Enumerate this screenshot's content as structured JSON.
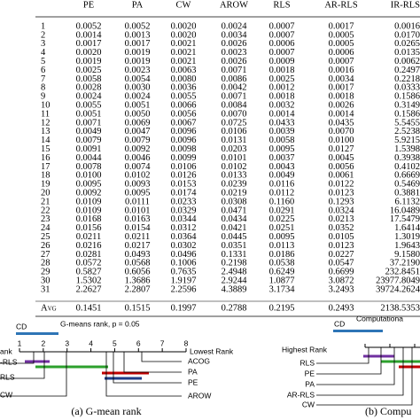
{
  "table": {
    "columns": [
      "PE",
      "PA",
      "CW",
      "AROW",
      "RLS",
      "AR-RLS",
      "IR-RLS"
    ],
    "rows": [
      [
        "1",
        "0.0052",
        "0.0052",
        "0.0020",
        "0.0024",
        "0.0007",
        "0.0017",
        "0.0016"
      ],
      [
        "2",
        "0.0014",
        "0.0013",
        "0.0020",
        "0.0034",
        "0.0007",
        "0.0005",
        "0.0170"
      ],
      [
        "3",
        "0.0017",
        "0.0017",
        "0.0021",
        "0.0026",
        "0.0006",
        "0.0005",
        "0.0265"
      ],
      [
        "4",
        "0.0020",
        "0.0019",
        "0.0021",
        "0.0023",
        "0.0007",
        "0.0006",
        "0.0135"
      ],
      [
        "5",
        "0.0019",
        "0.0019",
        "0.0021",
        "0.0026",
        "0.0009",
        "0.0007",
        "0.0062"
      ],
      [
        "6",
        "0.0025",
        "0.0023",
        "0.0063",
        "0.0071",
        "0.0018",
        "0.0016",
        "0.2497"
      ],
      [
        "7",
        "0.0058",
        "0.0054",
        "0.0080",
        "0.0086",
        "0.0025",
        "0.0034",
        "0.2218"
      ],
      [
        "8",
        "0.0028",
        "0.0030",
        "0.0036",
        "0.0042",
        "0.0012",
        "0.0017",
        "0.0333"
      ],
      [
        "9",
        "0.0024",
        "0.0024",
        "0.0055",
        "0.0071",
        "0.0018",
        "0.0018",
        "0.1586"
      ],
      [
        "10",
        "0.0055",
        "0.0051",
        "0.0066",
        "0.0084",
        "0.0032",
        "0.0026",
        "0.3149"
      ],
      [
        "11",
        "0.0051",
        "0.0050",
        "0.0056",
        "0.0070",
        "0.0014",
        "0.0014",
        "0.1586"
      ],
      [
        "12",
        "0.0071",
        "0.0069",
        "0.0067",
        "0.0725",
        "0.0433",
        "0.0435",
        "5.5455"
      ],
      [
        "13",
        "0.0049",
        "0.0047",
        "0.0096",
        "0.0106",
        "0.0039",
        "0.0070",
        "2.5238"
      ],
      [
        "14",
        "0.0079",
        "0.0079",
        "0.0096",
        "0.0131",
        "0.0058",
        "0.0100",
        "5.9215"
      ],
      [
        "15",
        "0.0091",
        "0.0092",
        "0.0098",
        "0.0203",
        "0.0095",
        "0.0127",
        "1.5398"
      ],
      [
        "16",
        "0.0044",
        "0.0046",
        "0.0099",
        "0.0101",
        "0.0037",
        "0.0045",
        "0.3938"
      ],
      [
        "17",
        "0.0078",
        "0.0074",
        "0.0106",
        "0.0102",
        "0.0043",
        "0.0056",
        "0.4102"
      ],
      [
        "18",
        "0.0100",
        "0.0102",
        "0.0126",
        "0.0133",
        "0.0049",
        "0.0061",
        "0.6669"
      ],
      [
        "19",
        "0.0095",
        "0.0093",
        "0.0153",
        "0.0239",
        "0.0116",
        "0.0122",
        "0.5469"
      ],
      [
        "20",
        "0.0092",
        "0.0095",
        "0.0174",
        "0.0219",
        "0.0112",
        "0.0123",
        "0.3881"
      ],
      [
        "21",
        "0.0109",
        "0.0111",
        "0.0233",
        "0.0308",
        "0.1160",
        "0.1293",
        "6.1132"
      ],
      [
        "22",
        "0.0109",
        "0.0101",
        "0.0329",
        "0.0471",
        "0.0291",
        "0.0324",
        "16.0489"
      ],
      [
        "23",
        "0.0168",
        "0.0163",
        "0.0344",
        "0.0434",
        "0.0225",
        "0.0213",
        "17.5479"
      ],
      [
        "24",
        "0.0156",
        "0.0154",
        "0.0312",
        "0.0421",
        "0.0251",
        "0.0352",
        "1.6414"
      ],
      [
        "25",
        "0.0211",
        "0.0211",
        "0.0364",
        "0.0445",
        "0.0095",
        "0.0105",
        "1.3019"
      ],
      [
        "26",
        "0.0216",
        "0.0217",
        "0.0302",
        "0.0351",
        "0.0113",
        "0.0123",
        "1.9643"
      ],
      [
        "27",
        "0.0281",
        "0.0493",
        "0.0496",
        "0.1331",
        "0.0186",
        "0.0227",
        "9.1580"
      ],
      [
        "28",
        "0.0572",
        "0.0568",
        "0.1006",
        "0.2198",
        "0.0538",
        "0.0547",
        "37.2190"
      ],
      [
        "29",
        "0.5827",
        "0.6056",
        "0.7635",
        "2.4948",
        "0.6249",
        "0.6699",
        "232.8451"
      ],
      [
        "30",
        "1.5302",
        "1.3686",
        "1.9197",
        "2.9244",
        "1.0877",
        "3.0872",
        "23977.8049"
      ],
      [
        "31",
        "2.2627",
        "2.2807",
        "2.2596",
        "4.3889",
        "3.1734",
        "3.2493",
        "39724.2624"
      ]
    ],
    "avg": [
      "Avg",
      "0.1451",
      "0.1515",
      "0.1997",
      "0.2788",
      "0.2195",
      "0.2493",
      "2138.5353"
    ]
  },
  "figure_a": {
    "title": "G-means rank, p = 0.05",
    "cd": "CD",
    "ticks": [
      1,
      2,
      3,
      4,
      5,
      6,
      7,
      8
    ],
    "lowest": "Lowest Rank",
    "highest": "ank",
    "left_labels": [
      "-RLS",
      "RLS",
      "CW"
    ],
    "right_labels": [
      "ACOG",
      "PA",
      "PE",
      "AROW"
    ],
    "caption": "(a) G-mean rank"
  },
  "figure_b": {
    "title": "Computationa",
    "cd": "CD",
    "highest": "Highest Rank",
    "labels": [
      "RLS",
      "PE",
      "PA",
      "AR-RLS",
      "CW"
    ],
    "caption": "(b) Compu"
  }
}
